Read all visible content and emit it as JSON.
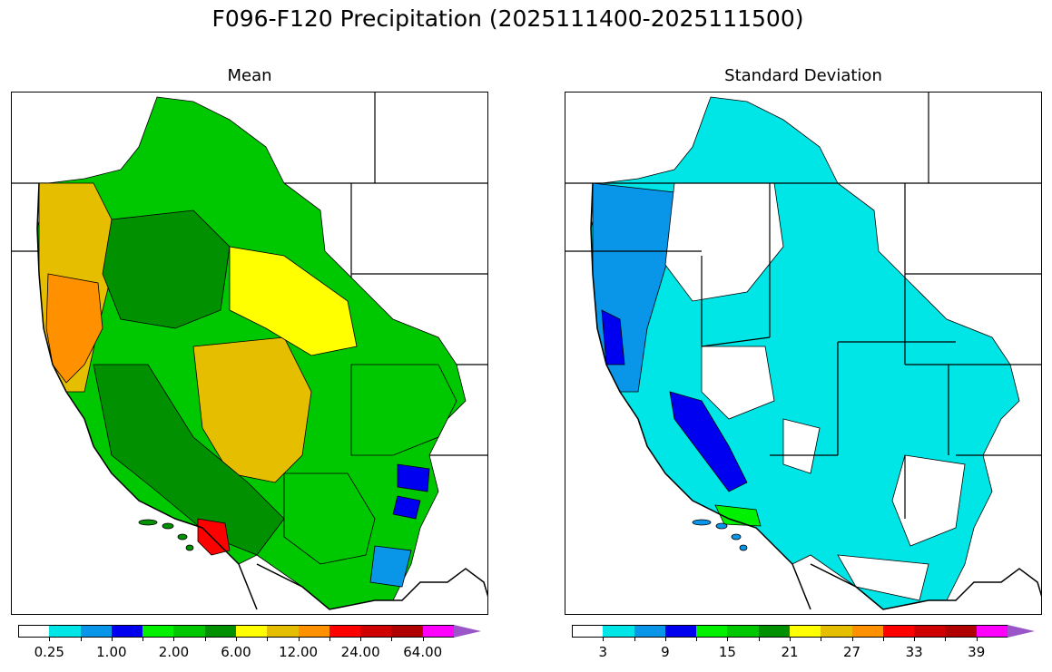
{
  "title": "F096-F120 Precipitation (2025111400-2025111500)",
  "panels": {
    "left": {
      "title": "Mean"
    },
    "right": {
      "title": "Standard Deviation"
    }
  },
  "colorbar": {
    "colors": [
      "#ffffff",
      "#00e5e5",
      "#0a96e8",
      "#0000f0",
      "#00f000",
      "#00c800",
      "#009000",
      "#ffff00",
      "#e6be00",
      "#ff9000",
      "#ff0000",
      "#d00000",
      "#b00000",
      "#ff00ff",
      "#9a55c8"
    ],
    "left_ticks": [
      "0.25",
      "1.00",
      "2.00",
      "6.00",
      "12.00",
      "24.00",
      "64.00"
    ],
    "right_ticks": [
      "3",
      "9",
      "15",
      "21",
      "27",
      "33",
      "39"
    ]
  },
  "map_regions": {
    "left": [
      {
        "name": "region-nw-coast",
        "color": "#e6be00"
      },
      {
        "name": "region-cascades",
        "color": "#ff9000"
      },
      {
        "name": "region-idaho",
        "color": "#009000"
      },
      {
        "name": "region-montana",
        "color": "#00c800"
      },
      {
        "name": "region-great-basin",
        "color": "#e6be00"
      },
      {
        "name": "region-sierra",
        "color": "#009000"
      },
      {
        "name": "region-utah",
        "color": "#ffff00"
      },
      {
        "name": "region-colorado",
        "color": "#00c800"
      },
      {
        "name": "region-arizona",
        "color": "#00c800"
      },
      {
        "name": "region-socal-red",
        "color": "#ff0000"
      },
      {
        "name": "region-nm-blue",
        "color": "#0000f0"
      },
      {
        "name": "region-arizona-blue",
        "color": "#0a96e8"
      }
    ],
    "right": [
      {
        "name": "region-coast-blue",
        "color": "#0a96e8"
      },
      {
        "name": "region-interior-cyan",
        "color": "#00e5e5"
      },
      {
        "name": "region-sierra-dark",
        "color": "#0000f0"
      },
      {
        "name": "region-socal-green",
        "color": "#00f000"
      },
      {
        "name": "region-nevada-white",
        "color": "#ffffff"
      },
      {
        "name": "region-nm-white",
        "color": "#ffffff"
      }
    ]
  }
}
